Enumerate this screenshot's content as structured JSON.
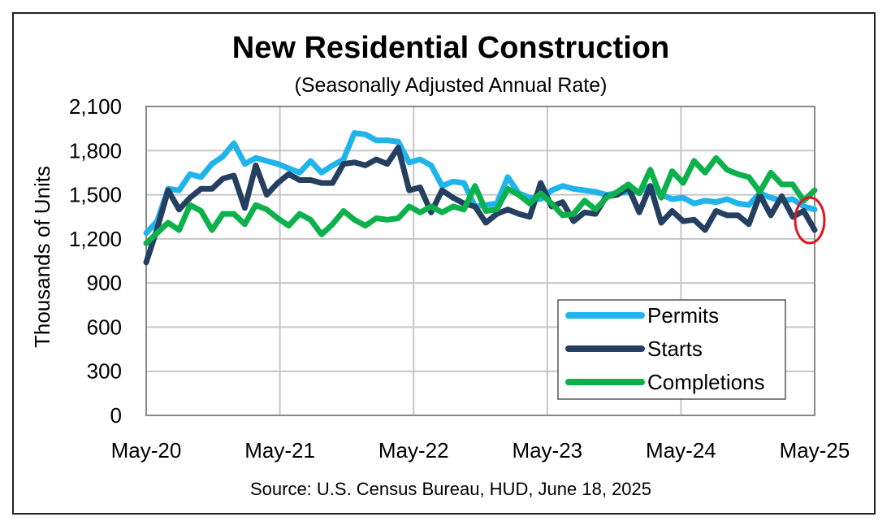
{
  "chart_data": {
    "type": "line",
    "title": "New Residential Construction",
    "subtitle": "(Seasonally Adjusted Annual Rate)",
    "ylabel": "Thousands of Units",
    "xlabel": "",
    "source": "Source:  U.S. Census Bureau, HUD, June 18, 2025",
    "ylim": [
      0,
      2100
    ],
    "yticks": [
      0,
      300,
      600,
      900,
      1200,
      1500,
      1800,
      2100
    ],
    "ytick_labels": [
      "0",
      "300",
      "600",
      "900",
      "1,200",
      "1,500",
      "1,800",
      "2,100"
    ],
    "x_start": "May-20",
    "x_end": "May-25",
    "x_tick_labels": [
      "May-20",
      "May-21",
      "May-22",
      "May-23",
      "May-24",
      "May-25"
    ],
    "grid": true,
    "legend_position": "bottom-right",
    "annotation": "red circle around the latest Starts value (May-25)",
    "series": [
      {
        "name": "Permits",
        "color": "#1fb4ec",
        "values": [
          1240,
          1320,
          1540,
          1530,
          1640,
          1620,
          1710,
          1760,
          1850,
          1710,
          1750,
          1730,
          1710,
          1680,
          1650,
          1730,
          1650,
          1700,
          1740,
          1920,
          1910,
          1870,
          1870,
          1860,
          1720,
          1740,
          1700,
          1560,
          1590,
          1580,
          1420,
          1430,
          1440,
          1620,
          1510,
          1480,
          1470,
          1530,
          1560,
          1540,
          1530,
          1520,
          1500,
          1510,
          1520,
          1520,
          1560,
          1500,
          1470,
          1480,
          1440,
          1460,
          1450,
          1470,
          1440,
          1430,
          1510,
          1480,
          1460,
          1470,
          1420,
          1400
        ]
      },
      {
        "name": "Starts",
        "color": "#243f60",
        "values": [
          1040,
          1270,
          1530,
          1400,
          1480,
          1540,
          1540,
          1610,
          1630,
          1410,
          1700,
          1500,
          1580,
          1640,
          1600,
          1600,
          1580,
          1580,
          1710,
          1720,
          1700,
          1740,
          1710,
          1820,
          1530,
          1550,
          1380,
          1530,
          1480,
          1440,
          1420,
          1310,
          1370,
          1400,
          1370,
          1350,
          1580,
          1420,
          1450,
          1320,
          1380,
          1370,
          1490,
          1500,
          1550,
          1380,
          1560,
          1310,
          1390,
          1320,
          1330,
          1260,
          1390,
          1360,
          1360,
          1300,
          1500,
          1360,
          1490,
          1350,
          1390,
          1260
        ]
      },
      {
        "name": "Completions",
        "color": "#0cb14b",
        "values": [
          1170,
          1240,
          1310,
          1260,
          1430,
          1390,
          1260,
          1370,
          1370,
          1300,
          1430,
          1400,
          1340,
          1290,
          1370,
          1330,
          1230,
          1300,
          1390,
          1330,
          1290,
          1340,
          1330,
          1340,
          1420,
          1380,
          1420,
          1380,
          1420,
          1400,
          1560,
          1390,
          1400,
          1540,
          1500,
          1440,
          1510,
          1440,
          1360,
          1370,
          1460,
          1400,
          1480,
          1520,
          1570,
          1510,
          1670,
          1480,
          1660,
          1580,
          1730,
          1650,
          1750,
          1670,
          1640,
          1620,
          1520,
          1650,
          1570,
          1570,
          1460,
          1530
        ]
      }
    ]
  }
}
